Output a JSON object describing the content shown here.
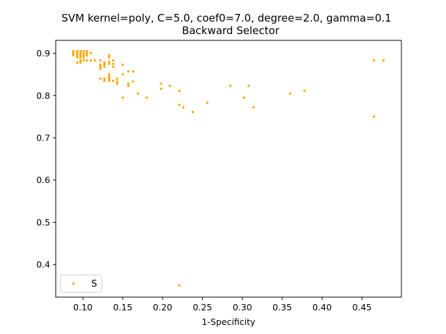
{
  "chart_data": {
    "type": "scatter",
    "title": "SVM kernel=poly, C=5.0, coef0=7.0, degree=2.0, gamma=0.1",
    "subtitle": "Backward Selector",
    "xlabel": "1-Specificity",
    "ylabel": "",
    "xlim": [
      0.066,
      0.4995
    ],
    "ylim": [
      0.323,
      0.9305
    ],
    "xticks": [
      {
        "value": 0.1,
        "label": "0.10"
      },
      {
        "value": 0.15,
        "label": "0.15"
      },
      {
        "value": 0.2,
        "label": "0.20"
      },
      {
        "value": 0.25,
        "label": "0.25"
      },
      {
        "value": 0.3,
        "label": "0.30"
      },
      {
        "value": 0.35,
        "label": "0.35"
      },
      {
        "value": 0.4,
        "label": "0.40"
      },
      {
        "value": 0.45,
        "label": "0.45"
      }
    ],
    "yticks": [
      {
        "value": 0.4,
        "label": "0.4"
      },
      {
        "value": 0.5,
        "label": "0.5"
      },
      {
        "value": 0.6,
        "label": "0.6"
      },
      {
        "value": 0.7,
        "label": "0.7"
      },
      {
        "value": 0.8,
        "label": "0.8"
      },
      {
        "value": 0.9,
        "label": "0.9"
      }
    ],
    "grid": false,
    "legend_position": "lower-left",
    "series": [
      {
        "name": "S",
        "color": "#ffa500",
        "marker": "square",
        "points": [
          {
            "x": 0.088,
            "y": 0.905
          },
          {
            "x": 0.088,
            "y": 0.9
          },
          {
            "x": 0.088,
            "y": 0.895
          },
          {
            "x": 0.093,
            "y": 0.905
          },
          {
            "x": 0.093,
            "y": 0.9
          },
          {
            "x": 0.093,
            "y": 0.895
          },
          {
            "x": 0.093,
            "y": 0.89
          },
          {
            "x": 0.093,
            "y": 0.878
          },
          {
            "x": 0.097,
            "y": 0.905
          },
          {
            "x": 0.097,
            "y": 0.9
          },
          {
            "x": 0.097,
            "y": 0.895
          },
          {
            "x": 0.097,
            "y": 0.89
          },
          {
            "x": 0.097,
            "y": 0.883
          },
          {
            "x": 0.097,
            "y": 0.878
          },
          {
            "x": 0.101,
            "y": 0.905
          },
          {
            "x": 0.101,
            "y": 0.9
          },
          {
            "x": 0.101,
            "y": 0.895
          },
          {
            "x": 0.101,
            "y": 0.89
          },
          {
            "x": 0.101,
            "y": 0.883
          },
          {
            "x": 0.105,
            "y": 0.905
          },
          {
            "x": 0.105,
            "y": 0.9
          },
          {
            "x": 0.105,
            "y": 0.895
          },
          {
            "x": 0.105,
            "y": 0.883
          },
          {
            "x": 0.11,
            "y": 0.9
          },
          {
            "x": 0.11,
            "y": 0.883
          },
          {
            "x": 0.115,
            "y": 0.883
          },
          {
            "x": 0.122,
            "y": 0.883
          },
          {
            "x": 0.122,
            "y": 0.873
          },
          {
            "x": 0.122,
            "y": 0.868
          },
          {
            "x": 0.122,
            "y": 0.863
          },
          {
            "x": 0.122,
            "y": 0.84
          },
          {
            "x": 0.127,
            "y": 0.878
          },
          {
            "x": 0.127,
            "y": 0.873
          },
          {
            "x": 0.127,
            "y": 0.868
          },
          {
            "x": 0.127,
            "y": 0.84
          },
          {
            "x": 0.127,
            "y": 0.835
          },
          {
            "x": 0.133,
            "y": 0.895
          },
          {
            "x": 0.133,
            "y": 0.89
          },
          {
            "x": 0.133,
            "y": 0.88
          },
          {
            "x": 0.133,
            "y": 0.875
          },
          {
            "x": 0.133,
            "y": 0.85
          },
          {
            "x": 0.133,
            "y": 0.845
          },
          {
            "x": 0.133,
            "y": 0.84
          },
          {
            "x": 0.133,
            "y": 0.835
          },
          {
            "x": 0.138,
            "y": 0.883
          },
          {
            "x": 0.138,
            "y": 0.875
          },
          {
            "x": 0.138,
            "y": 0.868
          },
          {
            "x": 0.138,
            "y": 0.835
          },
          {
            "x": 0.143,
            "y": 0.84
          },
          {
            "x": 0.143,
            "y": 0.833
          },
          {
            "x": 0.143,
            "y": 0.828
          },
          {
            "x": 0.15,
            "y": 0.873
          },
          {
            "x": 0.15,
            "y": 0.85
          },
          {
            "x": 0.15,
            "y": 0.795
          },
          {
            "x": 0.157,
            "y": 0.857
          },
          {
            "x": 0.157,
            "y": 0.828
          },
          {
            "x": 0.157,
            "y": 0.823
          },
          {
            "x": 0.163,
            "y": 0.857
          },
          {
            "x": 0.163,
            "y": 0.833
          },
          {
            "x": 0.169,
            "y": 0.805
          },
          {
            "x": 0.18,
            "y": 0.795
          },
          {
            "x": 0.198,
            "y": 0.828
          },
          {
            "x": 0.198,
            "y": 0.816
          },
          {
            "x": 0.209,
            "y": 0.823
          },
          {
            "x": 0.221,
            "y": 0.811
          },
          {
            "x": 0.221,
            "y": 0.778
          },
          {
            "x": 0.221,
            "y": 0.351
          },
          {
            "x": 0.226,
            "y": 0.772
          },
          {
            "x": 0.238,
            "y": 0.761
          },
          {
            "x": 0.256,
            "y": 0.783
          },
          {
            "x": 0.285,
            "y": 0.823
          },
          {
            "x": 0.302,
            "y": 0.795
          },
          {
            "x": 0.308,
            "y": 0.823
          },
          {
            "x": 0.314,
            "y": 0.772
          },
          {
            "x": 0.36,
            "y": 0.805
          },
          {
            "x": 0.378,
            "y": 0.811
          },
          {
            "x": 0.465,
            "y": 0.883
          },
          {
            "x": 0.465,
            "y": 0.75
          },
          {
            "x": 0.477,
            "y": 0.883
          }
        ]
      }
    ]
  }
}
